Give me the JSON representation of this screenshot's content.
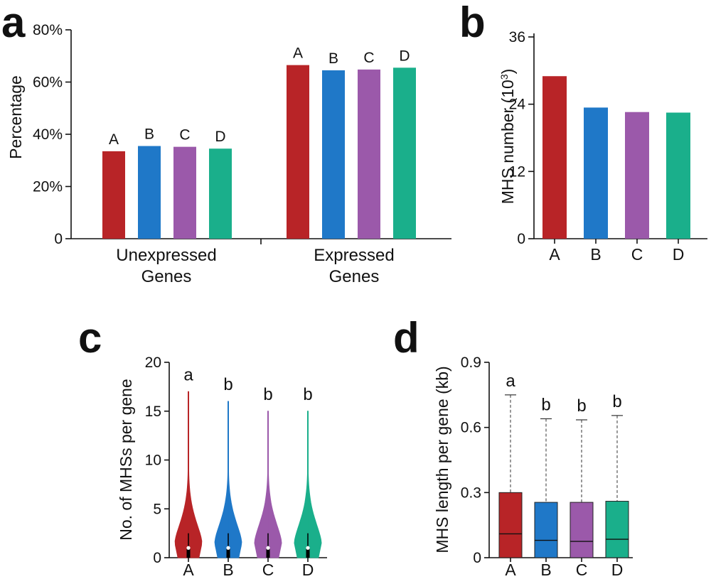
{
  "colors": {
    "A": "#b82427",
    "B": "#1f78c8",
    "C": "#9b59aa",
    "D": "#1aaf8b"
  },
  "panels": {
    "a": "a",
    "b": "b",
    "c": "c",
    "d": "d"
  },
  "chart_data": [
    {
      "id": "a",
      "type": "bar",
      "ylabel": "Percentage",
      "ylim": [
        0,
        80
      ],
      "yticks": [
        "0",
        "20%",
        "40%",
        "60%",
        "80%"
      ],
      "yticks_values": [
        0,
        20,
        40,
        60,
        80
      ],
      "groups": [
        {
          "label_line1": "Unexpressed",
          "label_line2": "Genes",
          "values": [
            33.5,
            35.5,
            35.2,
            34.5
          ]
        },
        {
          "label_line1": "Expressed",
          "label_line2": "Genes",
          "values": [
            66.5,
            64.5,
            64.8,
            65.5
          ]
        }
      ],
      "series": [
        "A",
        "B",
        "C",
        "D"
      ]
    },
    {
      "id": "b",
      "type": "bar",
      "ylabel": "MHS number (10",
      "ylabel_sup": "3",
      "ylabel_close": ")",
      "ylim": [
        0,
        36
      ],
      "yticks": [
        "0",
        "12",
        "24",
        "36"
      ],
      "yticks_values": [
        0,
        12,
        24,
        36
      ],
      "categories": [
        "A",
        "B",
        "C",
        "D"
      ],
      "values": [
        29,
        23.4,
        22.6,
        22.5
      ]
    },
    {
      "id": "c",
      "type": "violin",
      "ylabel": "No. of MHSs per gene",
      "ylim": [
        0,
        20
      ],
      "yticks": [
        "0",
        "5",
        "10",
        "15",
        "20"
      ],
      "yticks_values": [
        0,
        5,
        10,
        15,
        20
      ],
      "categories": [
        "A",
        "B",
        "C",
        "D"
      ],
      "max": [
        17,
        16,
        15,
        15
      ],
      "median": [
        1,
        1,
        1,
        1
      ],
      "whisker": [
        2.5,
        2.5,
        2.5,
        2.5
      ],
      "letters": [
        "a",
        "b",
        "b",
        "b"
      ]
    },
    {
      "id": "d",
      "type": "box",
      "ylabel": "MHS length per gene (kb)",
      "ylim": [
        0,
        0.9
      ],
      "yticks": [
        "0",
        "0.3",
        "0.6",
        "0.9"
      ],
      "yticks_values": [
        0,
        0.3,
        0.6,
        0.9
      ],
      "categories": [
        "A",
        "B",
        "C",
        "D"
      ],
      "q1": [
        0,
        0,
        0,
        0
      ],
      "median": [
        0.11,
        0.08,
        0.075,
        0.085
      ],
      "q3": [
        0.3,
        0.255,
        0.255,
        0.26
      ],
      "whisker_high": [
        0.75,
        0.64,
        0.635,
        0.655
      ],
      "letters": [
        "a",
        "b",
        "b",
        "b"
      ]
    }
  ]
}
